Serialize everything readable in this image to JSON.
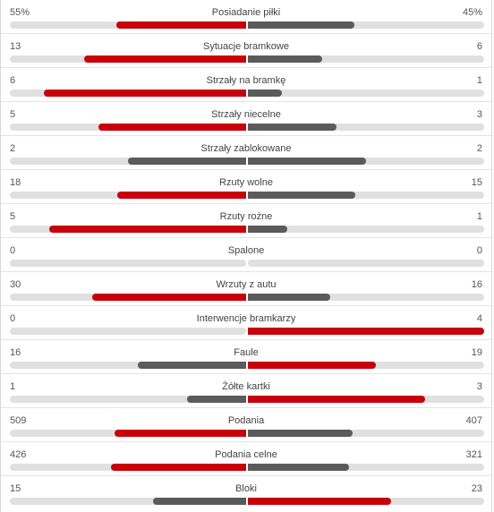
{
  "stats": [
    {
      "label": "Posiadanie piłki",
      "home": "55%",
      "away": "45%",
      "home_value": 55,
      "away_value": 45
    },
    {
      "label": "Sytuacje bramkowe",
      "home": "13",
      "away": "6",
      "home_value": 13,
      "away_value": 6
    },
    {
      "label": "Strzały na bramkę",
      "home": "6",
      "away": "1",
      "home_value": 6,
      "away_value": 1
    },
    {
      "label": "Strzały niecelne",
      "home": "5",
      "away": "3",
      "home_value": 5,
      "away_value": 3
    },
    {
      "label": "Strzały zablokowane",
      "home": "2",
      "away": "2",
      "home_value": 2,
      "away_value": 2
    },
    {
      "label": "Rzuty wolne",
      "home": "18",
      "away": "15",
      "home_value": 18,
      "away_value": 15
    },
    {
      "label": "Rzuty rożne",
      "home": "5",
      "away": "1",
      "home_value": 5,
      "away_value": 1
    },
    {
      "label": "Spalone",
      "home": "0",
      "away": "0",
      "home_value": 0,
      "away_value": 0
    },
    {
      "label": "Wrzuty z autu",
      "home": "30",
      "away": "16",
      "home_value": 30,
      "away_value": 16
    },
    {
      "label": "Interwencje bramkarzy",
      "home": "0",
      "away": "4",
      "home_value": 0,
      "away_value": 4
    },
    {
      "label": "Faule",
      "home": "16",
      "away": "19",
      "home_value": 16,
      "away_value": 19
    },
    {
      "label": "Żółte kartki",
      "home": "1",
      "away": "3",
      "home_value": 1,
      "away_value": 3
    },
    {
      "label": "Podania",
      "home": "509",
      "away": "407",
      "home_value": 509,
      "away_value": 407
    },
    {
      "label": "Podania celne",
      "home": "426",
      "away": "321",
      "home_value": 426,
      "away_value": 321
    },
    {
      "label": "Bloki",
      "home": "15",
      "away": "23",
      "home_value": 15,
      "away_value": 23
    }
  ],
  "colors": {
    "leader": "#c8000b",
    "trailer": "#5b5b5b",
    "track": "#e0e0e0"
  }
}
